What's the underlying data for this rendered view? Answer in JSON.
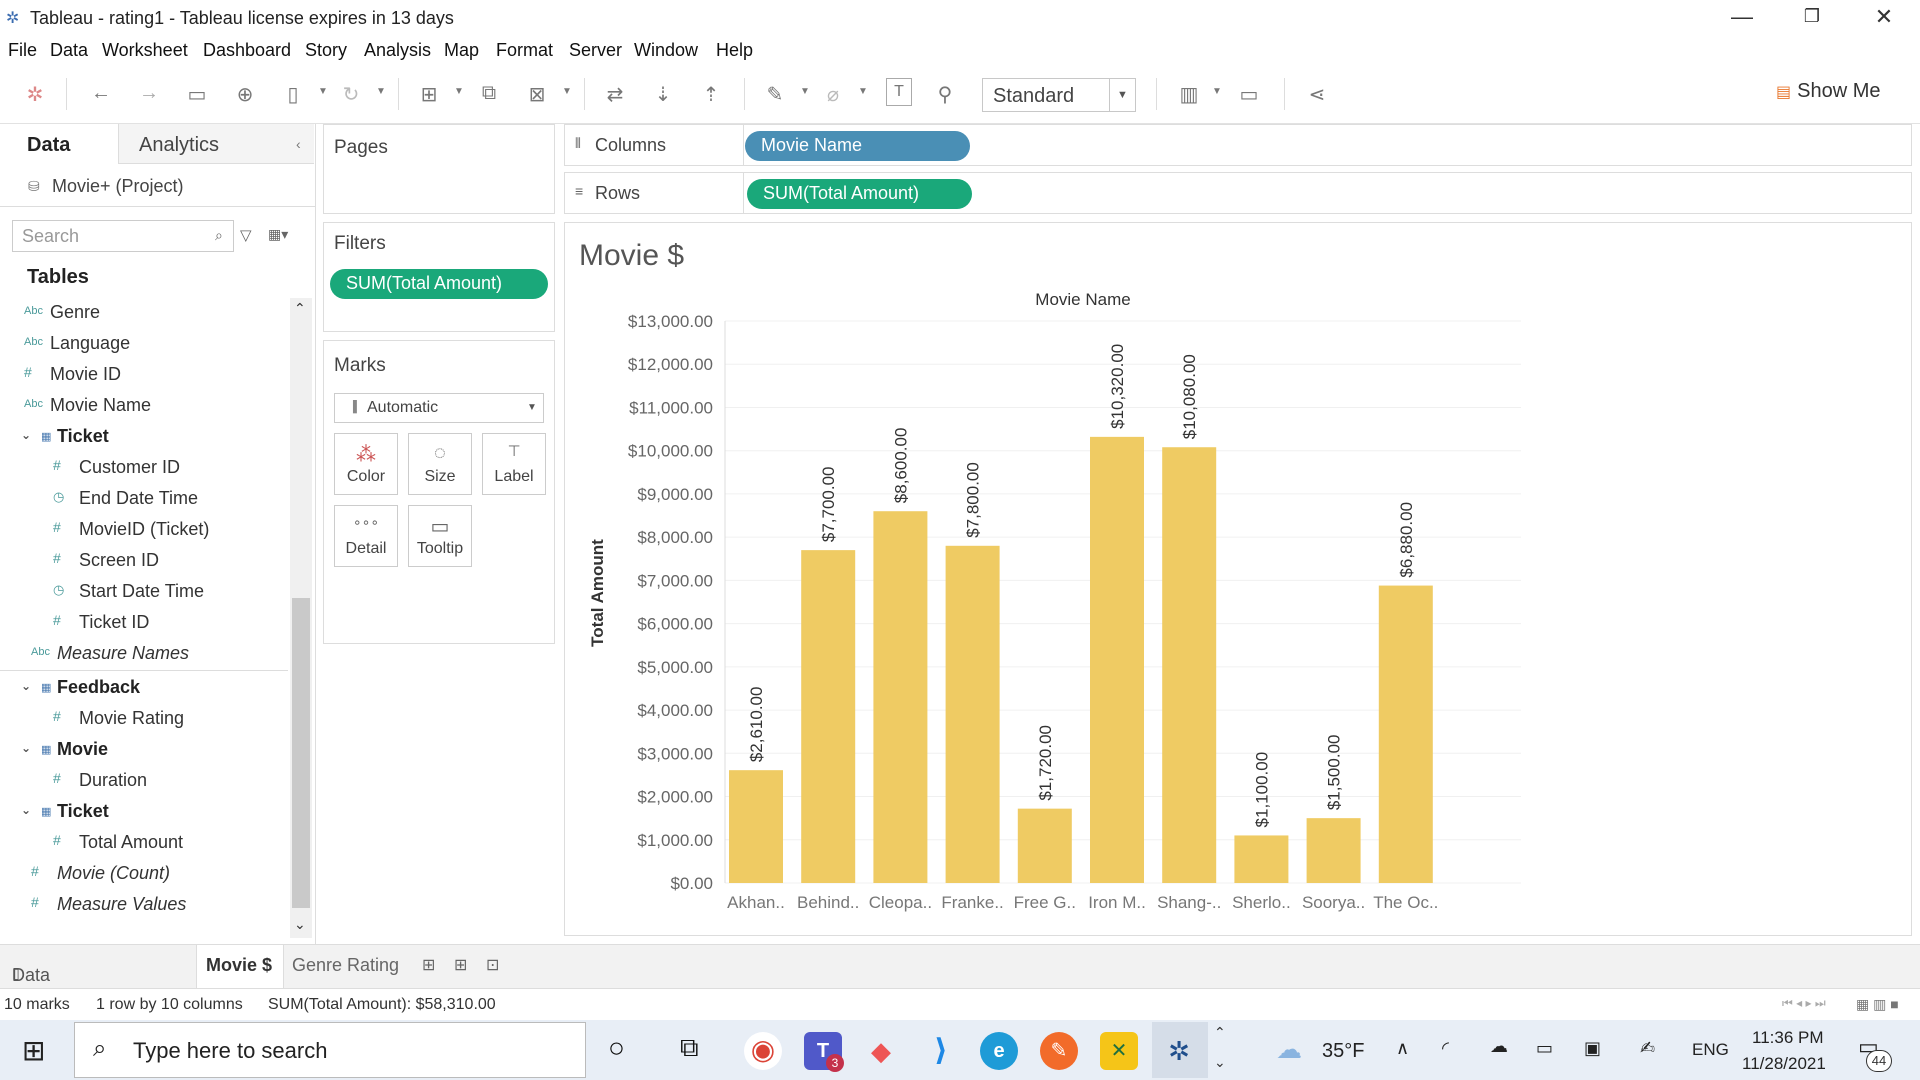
{
  "window": {
    "title": "Tableau - rating1 - Tableau license expires in 13 days"
  },
  "menu": [
    "File",
    "Data",
    "Worksheet",
    "Dashboard",
    "Story",
    "Analysis",
    "Map",
    "Format",
    "Server",
    "Window",
    "Help"
  ],
  "toolbar": {
    "fit": "Standard",
    "show_me": "Show Me"
  },
  "data_pane": {
    "tabs": [
      "Data",
      "Analytics"
    ],
    "datasource": "Movie+ (Project)",
    "search_placeholder": "Search",
    "tables_header": "Tables",
    "fields": [
      {
        "type": "Abc",
        "name": "Genre",
        "italic": false
      },
      {
        "type": "Abc",
        "name": "Language",
        "italic": false
      },
      {
        "type": "#",
        "name": "Movie ID",
        "italic": false
      },
      {
        "type": "Abc",
        "name": "Movie Name",
        "italic": false
      }
    ],
    "ticket_group": "Ticket",
    "ticket_fields": [
      {
        "type": "#",
        "name": "Customer ID"
      },
      {
        "type": "date",
        "name": "End Date Time"
      },
      {
        "type": "#",
        "name": "MovieID (Ticket)"
      },
      {
        "type": "#",
        "name": "Screen ID"
      },
      {
        "type": "date",
        "name": "Start Date Time"
      },
      {
        "type": "#",
        "name": "Ticket ID"
      }
    ],
    "measure_names": "Measure Names",
    "feedback_group": "Feedback",
    "feedback_field": "Movie Rating",
    "movie_group": "Movie",
    "movie_field": "Duration",
    "ticket2_group": "Ticket",
    "ticket2_field": "Total Amount",
    "movie_count": "Movie (Count)",
    "measure_values": "Measure Values"
  },
  "pages_title": "Pages",
  "filters": {
    "title": "Filters",
    "pill": "SUM(Total Amount)"
  },
  "marks": {
    "title": "Marks",
    "type": "Automatic",
    "buttons": [
      "Color",
      "Size",
      "Label",
      "Detail",
      "Tooltip"
    ]
  },
  "shelves": {
    "columns_label": "Columns",
    "columns_pill": "Movie Name",
    "rows_label": "Rows",
    "rows_pill": "SUM(Total Amount)"
  },
  "chart_data": {
    "type": "bar",
    "title": "Movie $",
    "header": "Movie Name",
    "ylabel": "Total Amount",
    "ylim": [
      0,
      13000
    ],
    "yticks": [
      "$0.00",
      "$1,000.00",
      "$2,000.00",
      "$3,000.00",
      "$4,000.00",
      "$5,000.00",
      "$6,000.00",
      "$7,000.00",
      "$8,000.00",
      "$9,000.00",
      "$10,000.00",
      "$11,000.00",
      "$12,000.00",
      "$13,000.00"
    ],
    "categories": [
      "Akhan..",
      "Behind..",
      "Cleopa..",
      "Franke..",
      "Free G..",
      "Iron M..",
      "Shang-..",
      "Sherlo..",
      "Soorya..",
      "The Oc.."
    ],
    "values": [
      2610,
      7700,
      8600,
      7800,
      1720,
      10320,
      10080,
      1100,
      1500,
      6880
    ],
    "labels": [
      "$2,610.00",
      "$7,700.00",
      "$8,600.00",
      "$7,800.00",
      "$1,720.00",
      "$10,320.00",
      "$10,080.00",
      "$1,100.00",
      "$1,500.00",
      "$6,880.00"
    ],
    "bar_color": "#efcb63"
  },
  "sheets": {
    "datasource": "Data Source",
    "active": "Movie $",
    "other": "Genre Rating"
  },
  "status": {
    "marks": "10 marks",
    "dims": "1 row by 10 columns",
    "sum": "SUM(Total Amount): $58,310.00"
  },
  "taskbar": {
    "search": "Type here to search",
    "temp": "35°F",
    "lang": "ENG",
    "time": "11:36 PM",
    "date": "11/28/2021",
    "notif": "44",
    "teams_badge": "3"
  }
}
